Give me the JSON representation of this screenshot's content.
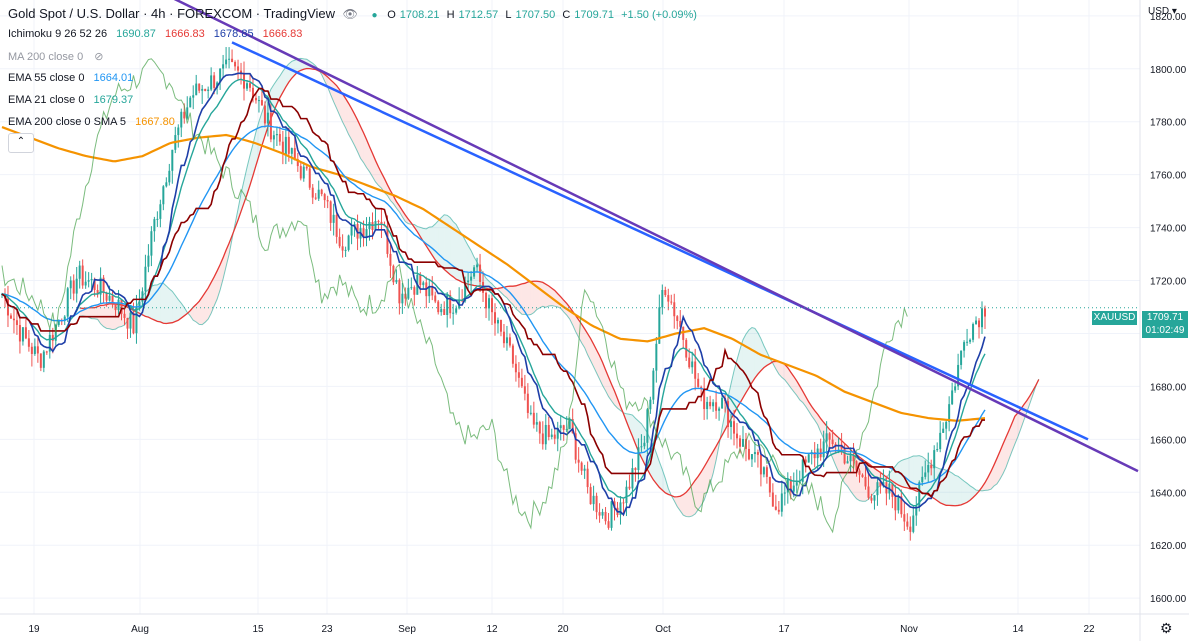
{
  "header": {
    "symbol_title": "Gold Spot / U.S. Dollar · 4h · FOREXCOM · TradingView",
    "ohlc_o_label": "O",
    "ohlc_o": "1708.21",
    "ohlc_h_label": "H",
    "ohlc_h": "1712.57",
    "ohlc_l_label": "L",
    "ohlc_l": "1707.50",
    "ohlc_c_label": "C",
    "ohlc_c": "1709.71",
    "ohlc_change": "+1.50 (+0.09%)"
  },
  "indicators": [
    {
      "label": "Ichimoku 9 26 52 26",
      "values": [
        "1690.87",
        "1666.83",
        "1678.85",
        "1666.83"
      ],
      "colors": [
        "#26a69a",
        "#e53935",
        "#1e3ea8",
        "#e53935"
      ]
    },
    {
      "label": "MA 200 close 0",
      "values": [],
      "colors": []
    },
    {
      "label": "EMA 55 close 0",
      "values": [
        "1664.01"
      ],
      "colors": [
        "#2196f3"
      ]
    },
    {
      "label": "EMA 21 close 0",
      "values": [
        "1679.37"
      ],
      "colors": [
        "#26a69a"
      ]
    },
    {
      "label": "EMA 200 close 0 SMA 5",
      "values": [
        "1667.80"
      ],
      "colors": [
        "#f59300"
      ]
    }
  ],
  "axis": {
    "currency": "USD",
    "price_ticks": [
      "1820.00",
      "1800.00",
      "1780.00",
      "1760.00",
      "1740.00",
      "1720.00",
      "1700.00",
      "1680.00",
      "1660.00",
      "1640.00",
      "1620.00",
      "1600.00"
    ],
    "time_ticks": [
      "19",
      "Aug",
      "15",
      "23",
      "Sep",
      "12",
      "20",
      "Oct",
      "17",
      "Nov",
      "14",
      "22"
    ]
  },
  "price_tag": {
    "symbol": "XAUUSD",
    "price": "1709.71",
    "countdown": "01:02:49"
  },
  "colors": {
    "candle_up": "#26a69a",
    "candle_down": "#ef5350",
    "ema200": "#f59300",
    "ema55": "#2196f3",
    "ema21": "#26a69a",
    "tenkan": "#1e3ea8",
    "kijun": "#8b0000",
    "senkou_a": "#26a69a",
    "senkou_b": "#e53935",
    "trend_blue": "#2962ff",
    "trend_purple": "#673ab7"
  },
  "chart_data": {
    "type": "line",
    "title": "Gold Spot / U.S. Dollar · 4h · FOREXCOM",
    "ylim": [
      1594,
      1826
    ],
    "y_ticks": [
      1820,
      1800,
      1780,
      1760,
      1740,
      1720,
      1700,
      1680,
      1660,
      1640,
      1620,
      1600
    ],
    "x_ticks": [
      "19",
      "Aug",
      "15",
      "23",
      "Sep",
      "12",
      "20",
      "Oct",
      "17",
      "Nov",
      "14",
      "22"
    ],
    "series": [
      {
        "name": "Price close",
        "values": [
          1715,
          1700,
          1690,
          1705,
          1722,
          1718,
          1712,
          1702,
          1740,
          1770,
          1790,
          1795,
          1800,
          1796,
          1780,
          1770,
          1760,
          1750,
          1735,
          1740,
          1745,
          1715,
          1720,
          1710,
          1712,
          1725,
          1705,
          1690,
          1665,
          1660,
          1665,
          1640,
          1630,
          1640,
          1660,
          1720,
          1700,
          1675,
          1675,
          1660,
          1650,
          1635,
          1645,
          1655,
          1660,
          1650,
          1640,
          1640,
          1628,
          1650,
          1670,
          1700,
          1710
        ]
      },
      {
        "name": "EMA 200",
        "values": [
          1778,
          1774,
          1770,
          1767,
          1765,
          1767,
          1772,
          1774,
          1775,
          1772,
          1768,
          1763,
          1760,
          1756,
          1752,
          1747,
          1740,
          1733,
          1726,
          1718,
          1710,
          1703,
          1698,
          1697,
          1700,
          1702,
          1698,
          1692,
          1688,
          1684,
          1678,
          1674,
          1670,
          1668,
          1667,
          1668
        ]
      },
      {
        "name": "Trendline 1",
        "values": [
          1810,
          1660
        ]
      },
      {
        "name": "Trendline 2",
        "values": [
          1830,
          1648
        ]
      }
    ],
    "last_price": 1709.71
  }
}
